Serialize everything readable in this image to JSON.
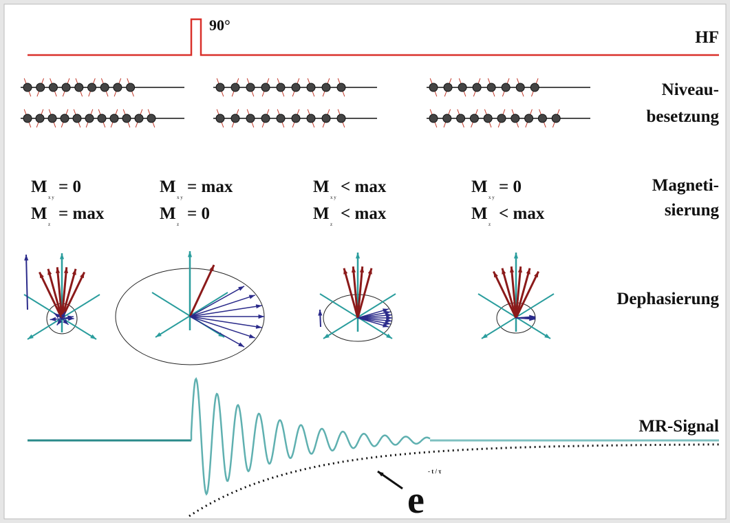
{
  "hf": {
    "pulse_label": "90°",
    "label": "HF"
  },
  "levels": {
    "label": [
      "Niveau-",
      "besetzung"
    ]
  },
  "magnetization": {
    "label": [
      "Magneti-",
      "sierung"
    ],
    "symbol": "M",
    "sub_xy": "x y",
    "sub_z": "z",
    "states": [
      {
        "mxy": "= 0",
        "mz": "= max"
      },
      {
        "mxy": "= max",
        "mz": "= 0"
      },
      {
        "mxy": "< max",
        "mz": "< max"
      },
      {
        "mxy": "= 0",
        "mz": "< max"
      }
    ]
  },
  "dephasing": {
    "label": "Dephasierung"
  },
  "signal": {
    "label": "MR-Signal",
    "envelope_base": "e",
    "envelope_exponent": "- t / τ"
  }
}
